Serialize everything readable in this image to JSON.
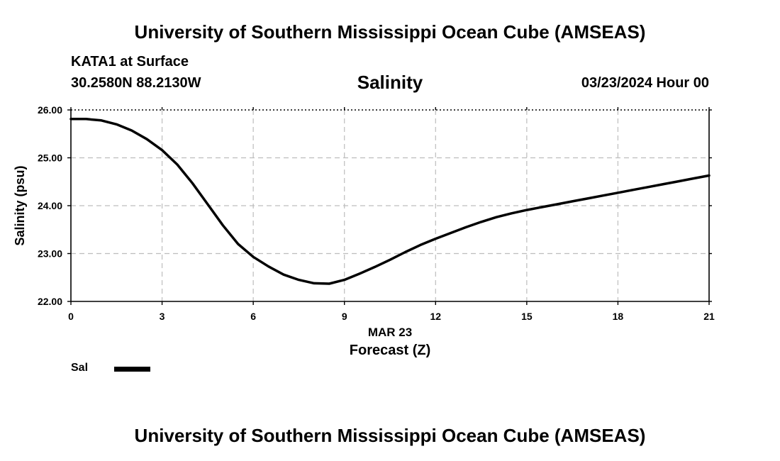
{
  "header": {
    "top_title": "University of Southern Mississippi Ocean Cube (AMSEAS)",
    "station": "KATA1 at Surface",
    "coords": "30.2580N  88.2130W",
    "chart_title": "Salinity",
    "date": "03/23/2024 Hour 00"
  },
  "footer": {
    "bottom_title": "University of Southern Mississippi Ocean Cube (AMSEAS)"
  },
  "legend": {
    "label": "Sal",
    "color": "#000000"
  },
  "chart_data": {
    "type": "line",
    "title": "Salinity",
    "xlabel": "Forecast (Z)",
    "xlabel_date": "MAR 23",
    "ylabel": "Salinity (psu)",
    "xlim": [
      0,
      21
    ],
    "ylim": [
      22,
      26
    ],
    "xticks": [
      "0",
      "3",
      "6",
      "9",
      "12",
      "15",
      "18",
      "21"
    ],
    "yticks": [
      "22.00",
      "23.00",
      "24.00",
      "25.00",
      "26.00"
    ],
    "grid": true,
    "legend_position": "bottom-left",
    "series": [
      {
        "name": "Sal",
        "color": "#000000",
        "x": [
          0,
          0.5,
          1,
          1.5,
          2,
          2.5,
          3,
          3.5,
          4,
          4.5,
          5,
          5.5,
          6,
          6.5,
          7,
          7.5,
          8,
          8.5,
          9,
          9.5,
          10,
          10.5,
          11,
          11.5,
          12,
          12.5,
          13,
          13.5,
          14,
          14.5,
          15,
          15.5,
          16,
          16.5,
          17,
          17.5,
          18,
          18.5,
          19,
          19.5,
          20,
          20.5,
          21
        ],
        "y": [
          25.81,
          25.81,
          25.78,
          25.7,
          25.57,
          25.39,
          25.16,
          24.86,
          24.47,
          24.03,
          23.59,
          23.2,
          22.93,
          22.73,
          22.56,
          22.45,
          22.38,
          22.37,
          22.45,
          22.58,
          22.72,
          22.87,
          23.03,
          23.18,
          23.31,
          23.43,
          23.55,
          23.66,
          23.76,
          23.84,
          23.91,
          23.97,
          24.03,
          24.09,
          24.15,
          24.21,
          24.27,
          24.33,
          24.39,
          24.45,
          24.51,
          24.57,
          24.63
        ]
      }
    ]
  }
}
